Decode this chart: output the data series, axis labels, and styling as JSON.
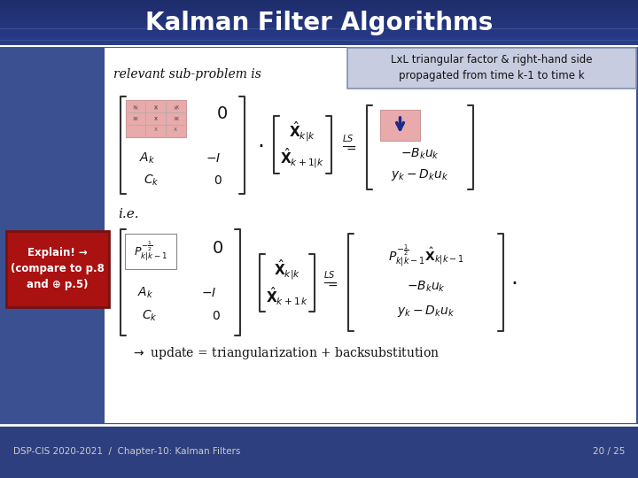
{
  "title": "Kalman Filter Algorithms",
  "title_color": "#ffffff",
  "footer_text_left": "DSP-CIS 2020-2021  /  Chapter-10: Kalman Filters",
  "footer_text_right": "20 / 25",
  "footer_bg_color": "#2e3f7f",
  "slide_bg_color": "#3a5090",
  "annotation_text": "LxL triangular factor & right-hand side\npropagated from time k-1 to time k",
  "annotation_bg": "#c8cce0",
  "annotation_border": "#8090b0",
  "explain_text": "Explain! →\n(compare to p.8\nand ⊕ p.5)",
  "explain_bg": "#aa1111",
  "explain_text_color": "#ffffff",
  "content_bg": "#ffffff",
  "white_line_color": "#ffffff",
  "title_bg": "#1e2d6c"
}
